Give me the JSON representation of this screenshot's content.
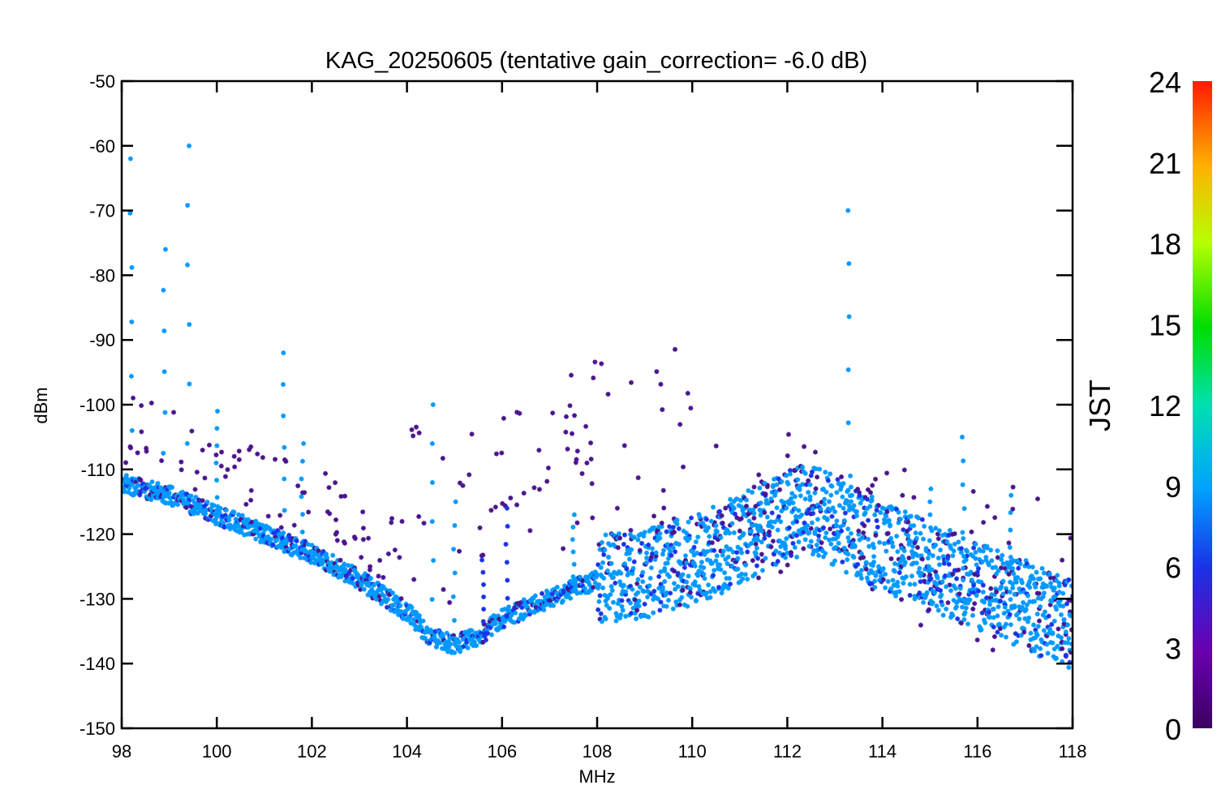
{
  "chart_data": {
    "type": "scatter",
    "title": "KAG_20250605 (tentative gain_correction= -6.0 dB)",
    "xlabel": "MHz",
    "ylabel": "dBm",
    "xlim": [
      98,
      118
    ],
    "ylim": [
      -150,
      -50
    ],
    "xticks": [
      98,
      100,
      102,
      104,
      106,
      108,
      110,
      112,
      114,
      116,
      118
    ],
    "yticks": [
      -50,
      -60,
      -70,
      -80,
      -90,
      -100,
      -110,
      -120,
      -130,
      -140,
      -150
    ],
    "grid": false,
    "marker": "asterisk",
    "colorbar": {
      "label": "JST",
      "range": [
        0,
        24
      ],
      "ticks": [
        0,
        3,
        6,
        9,
        12,
        15,
        18,
        21,
        24
      ],
      "colormap": "rainbow"
    },
    "colors": {
      "dominant_series": "#0099ff",
      "deep_blue": "#1a33e6",
      "purple": "#4a148c",
      "axis": "#000000"
    },
    "noise_floor": {
      "x": [
        98,
        99,
        100,
        101,
        102,
        103,
        104,
        104.5,
        105,
        105.5,
        106,
        107,
        108,
        109,
        110,
        111,
        112,
        112.5,
        113,
        114,
        115,
        116,
        117,
        118
      ],
      "y": [
        -112,
        -114,
        -117,
        -120,
        -123,
        -127,
        -132,
        -136,
        -137,
        -136,
        -133,
        -130,
        -127,
        -126,
        -124,
        -121,
        -117,
        -116,
        -118,
        -122,
        -125,
        -128,
        -131,
        -134
      ]
    },
    "peaks": [
      {
        "x": 98.2,
        "ymax": -62,
        "jst": 7
      },
      {
        "x": 98.9,
        "ymax": -76,
        "jst": 7
      },
      {
        "x": 99.4,
        "ymax": -60,
        "jst": 7
      },
      {
        "x": 100.0,
        "ymax": -101,
        "jst": 7
      },
      {
        "x": 101.4,
        "ymax": -92,
        "jst": 7
      },
      {
        "x": 101.8,
        "ymax": -106,
        "jst": 7
      },
      {
        "x": 104.55,
        "ymax": -100,
        "jst": 7
      },
      {
        "x": 105.0,
        "ymax": -115,
        "jst": 7
      },
      {
        "x": 105.6,
        "ymax": -124,
        "jst": 4
      },
      {
        "x": 106.1,
        "ymax": -116,
        "jst": 4
      },
      {
        "x": 107.5,
        "ymax": -117,
        "jst": 7
      },
      {
        "x": 113.3,
        "ymax": -70,
        "jst": 7
      },
      {
        "x": 115.0,
        "ymax": -113,
        "jst": 7
      },
      {
        "x": 115.7,
        "ymax": -105,
        "jst": 7
      },
      {
        "x": 116.7,
        "ymax": -114,
        "jst": 7
      }
    ]
  }
}
